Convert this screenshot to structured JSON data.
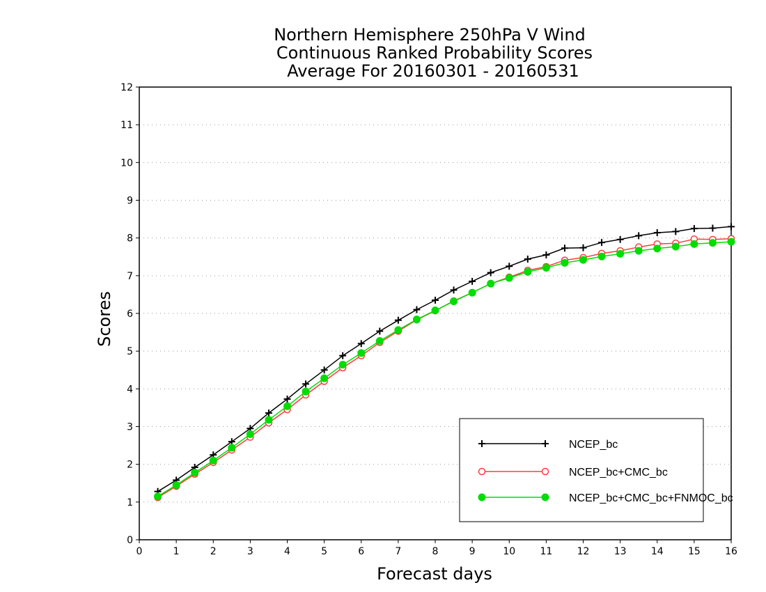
{
  "chart_data": {
    "type": "line",
    "title_lines": [
      "Northern Hemisphere 250hPa V Wind",
      "Continuous Ranked Probability Scores",
      "Average For 20160301 - 20160531"
    ],
    "xlabel": "Forecast days",
    "ylabel": "Scores",
    "xlim": [
      0,
      16
    ],
    "ylim": [
      0,
      12
    ],
    "xticks": [
      "0",
      "1",
      "2",
      "3",
      "4",
      "5",
      "6",
      "7",
      "8",
      "9",
      "10",
      "11",
      "12",
      "13",
      "14",
      "15",
      "16"
    ],
    "yticks": [
      "0",
      "1",
      "2",
      "3",
      "4",
      "5",
      "6",
      "7",
      "8",
      "9",
      "10",
      "11",
      "12"
    ],
    "grid": "horizontal dotted",
    "legend_position": "bottom-right",
    "x": [
      0.5,
      1,
      1.5,
      2,
      2.5,
      3,
      3.5,
      4,
      4.5,
      5,
      5.5,
      6,
      6.5,
      7,
      7.5,
      8,
      8.5,
      9,
      9.5,
      10,
      10.5,
      11,
      11.5,
      12,
      12.5,
      13,
      13.5,
      14,
      14.5,
      15,
      15.5,
      16
    ],
    "series": [
      {
        "name": "NCEP_bc",
        "color": "#000000",
        "marker": "plus",
        "values": [
          1.28,
          1.58,
          1.92,
          2.25,
          2.6,
          2.95,
          3.36,
          3.73,
          4.13,
          4.5,
          4.88,
          5.2,
          5.53,
          5.82,
          6.1,
          6.35,
          6.62,
          6.85,
          7.08,
          7.25,
          7.44,
          7.55,
          7.73,
          7.74,
          7.88,
          7.96,
          8.06,
          8.14,
          8.17,
          8.25,
          8.26,
          8.3
        ]
      },
      {
        "name": "NCEP_bc+CMC_bc",
        "color": "#ff3b3b",
        "marker": "open-circle",
        "values": [
          1.12,
          1.42,
          1.74,
          2.05,
          2.38,
          2.72,
          3.1,
          3.45,
          3.84,
          4.2,
          4.56,
          4.88,
          5.23,
          5.53,
          5.83,
          6.07,
          6.33,
          6.55,
          6.79,
          6.96,
          7.14,
          7.24,
          7.41,
          7.48,
          7.59,
          7.66,
          7.76,
          7.84,
          7.86,
          7.97,
          7.96,
          7.98
        ]
      },
      {
        "name": "NCEP_bc+CMC_bc+FNMOC_bc",
        "color": "#00dd00",
        "marker": "filled-circle",
        "values": [
          1.15,
          1.45,
          1.78,
          2.1,
          2.44,
          2.8,
          3.18,
          3.54,
          3.93,
          4.28,
          4.64,
          4.95,
          5.27,
          5.56,
          5.84,
          6.08,
          6.32,
          6.55,
          6.79,
          6.94,
          7.1,
          7.21,
          7.34,
          7.42,
          7.51,
          7.58,
          7.66,
          7.72,
          7.77,
          7.84,
          7.87,
          7.9
        ]
      }
    ]
  }
}
